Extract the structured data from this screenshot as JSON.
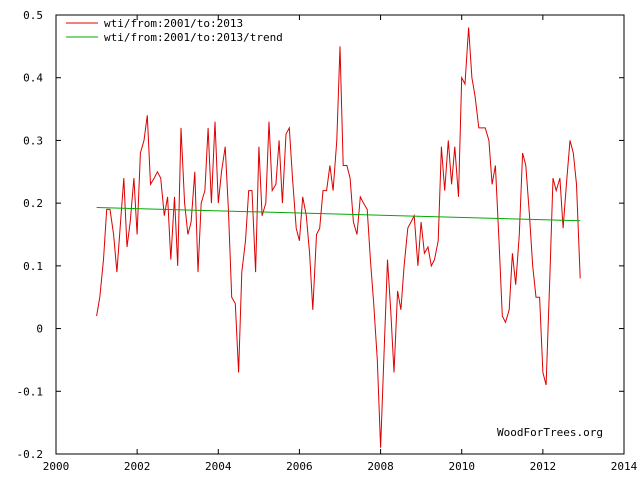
{
  "chart_data": {
    "type": "line",
    "title": "",
    "xlabel": "",
    "ylabel": "",
    "xlim": [
      2000,
      2014
    ],
    "ylim": [
      -0.2,
      0.5
    ],
    "grid": false,
    "legend_position": "top-left",
    "x_ticks": [
      {
        "value": 2000,
        "label": "2000"
      },
      {
        "value": 2002,
        "label": "2002"
      },
      {
        "value": 2004,
        "label": "2004"
      },
      {
        "value": 2006,
        "label": "2006"
      },
      {
        "value": 2008,
        "label": "2008"
      },
      {
        "value": 2010,
        "label": "2010"
      },
      {
        "value": 2012,
        "label": "2012"
      },
      {
        "value": 2014,
        "label": "2014"
      }
    ],
    "y_ticks": [
      {
        "value": -0.2,
        "label": "-0.2"
      },
      {
        "value": -0.1,
        "label": "-0.1"
      },
      {
        "value": 0,
        "label": "0"
      },
      {
        "value": 0.1,
        "label": "0.1"
      },
      {
        "value": 0.2,
        "label": "0.2"
      },
      {
        "value": 0.3,
        "label": "0.3"
      },
      {
        "value": 0.4,
        "label": "0.4"
      },
      {
        "value": 0.5,
        "label": "0.5"
      }
    ],
    "annotation": "WoodForTrees.org",
    "series": [
      {
        "name": "wti/from:2001/to:2013",
        "color": "#dd0000",
        "points": [
          [
            2001.0,
            0.02
          ],
          [
            2001.08,
            0.05
          ],
          [
            2001.17,
            0.11
          ],
          [
            2001.25,
            0.19
          ],
          [
            2001.33,
            0.19
          ],
          [
            2001.42,
            0.15
          ],
          [
            2001.5,
            0.09
          ],
          [
            2001.58,
            0.16
          ],
          [
            2001.67,
            0.24
          ],
          [
            2001.75,
            0.13
          ],
          [
            2001.83,
            0.17
          ],
          [
            2001.92,
            0.24
          ],
          [
            2002.0,
            0.15
          ],
          [
            2002.08,
            0.28
          ],
          [
            2002.17,
            0.3
          ],
          [
            2002.25,
            0.34
          ],
          [
            2002.33,
            0.23
          ],
          [
            2002.42,
            0.24
          ],
          [
            2002.5,
            0.25
          ],
          [
            2002.58,
            0.24
          ],
          [
            2002.67,
            0.18
          ],
          [
            2002.75,
            0.21
          ],
          [
            2002.83,
            0.11
          ],
          [
            2002.92,
            0.21
          ],
          [
            2003.0,
            0.1
          ],
          [
            2003.08,
            0.32
          ],
          [
            2003.17,
            0.2
          ],
          [
            2003.25,
            0.15
          ],
          [
            2003.33,
            0.17
          ],
          [
            2003.42,
            0.25
          ],
          [
            2003.5,
            0.09
          ],
          [
            2003.58,
            0.2
          ],
          [
            2003.67,
            0.22
          ],
          [
            2003.75,
            0.32
          ],
          [
            2003.83,
            0.2
          ],
          [
            2003.92,
            0.33
          ],
          [
            2004.0,
            0.2
          ],
          [
            2004.08,
            0.25
          ],
          [
            2004.17,
            0.29
          ],
          [
            2004.25,
            0.19
          ],
          [
            2004.33,
            0.05
          ],
          [
            2004.42,
            0.04
          ],
          [
            2004.5,
            -0.07
          ],
          [
            2004.58,
            0.09
          ],
          [
            2004.67,
            0.14
          ],
          [
            2004.75,
            0.22
          ],
          [
            2004.83,
            0.22
          ],
          [
            2004.92,
            0.09
          ],
          [
            2005.0,
            0.29
          ],
          [
            2005.08,
            0.18
          ],
          [
            2005.17,
            0.2
          ],
          [
            2005.25,
            0.33
          ],
          [
            2005.33,
            0.22
          ],
          [
            2005.42,
            0.23
          ],
          [
            2005.5,
            0.3
          ],
          [
            2005.58,
            0.2
          ],
          [
            2005.67,
            0.31
          ],
          [
            2005.75,
            0.32
          ],
          [
            2005.83,
            0.24
          ],
          [
            2005.92,
            0.16
          ],
          [
            2006.0,
            0.14
          ],
          [
            2006.08,
            0.21
          ],
          [
            2006.17,
            0.18
          ],
          [
            2006.25,
            0.12
          ],
          [
            2006.33,
            0.03
          ],
          [
            2006.42,
            0.15
          ],
          [
            2006.5,
            0.16
          ],
          [
            2006.58,
            0.22
          ],
          [
            2006.67,
            0.22
          ],
          [
            2006.75,
            0.26
          ],
          [
            2006.83,
            0.22
          ],
          [
            2006.92,
            0.3
          ],
          [
            2007.0,
            0.45
          ],
          [
            2007.08,
            0.26
          ],
          [
            2007.17,
            0.26
          ],
          [
            2007.25,
            0.24
          ],
          [
            2007.33,
            0.17
          ],
          [
            2007.42,
            0.15
          ],
          [
            2007.5,
            0.21
          ],
          [
            2007.58,
            0.2
          ],
          [
            2007.67,
            0.19
          ],
          [
            2007.75,
            0.11
          ],
          [
            2007.83,
            0.04
          ],
          [
            2007.92,
            -0.05
          ],
          [
            2008.0,
            -0.19
          ],
          [
            2008.08,
            -0.05
          ],
          [
            2008.17,
            0.11
          ],
          [
            2008.25,
            0.03
          ],
          [
            2008.33,
            -0.07
          ],
          [
            2008.42,
            0.06
          ],
          [
            2008.5,
            0.03
          ],
          [
            2008.58,
            0.1
          ],
          [
            2008.67,
            0.16
          ],
          [
            2008.75,
            0.17
          ],
          [
            2008.83,
            0.18
          ],
          [
            2008.92,
            0.1
          ],
          [
            2009.0,
            0.17
          ],
          [
            2009.08,
            0.12
          ],
          [
            2009.17,
            0.13
          ],
          [
            2009.25,
            0.1
          ],
          [
            2009.33,
            0.11
          ],
          [
            2009.42,
            0.14
          ],
          [
            2009.5,
            0.29
          ],
          [
            2009.58,
            0.22
          ],
          [
            2009.67,
            0.3
          ],
          [
            2009.75,
            0.23
          ],
          [
            2009.83,
            0.29
          ],
          [
            2009.92,
            0.21
          ],
          [
            2010.0,
            0.4
          ],
          [
            2010.08,
            0.39
          ],
          [
            2010.17,
            0.48
          ],
          [
            2010.25,
            0.4
          ],
          [
            2010.33,
            0.37
          ],
          [
            2010.42,
            0.32
          ],
          [
            2010.5,
            0.32
          ],
          [
            2010.58,
            0.32
          ],
          [
            2010.67,
            0.3
          ],
          [
            2010.75,
            0.23
          ],
          [
            2010.83,
            0.26
          ],
          [
            2010.92,
            0.14
          ],
          [
            2011.0,
            0.02
          ],
          [
            2011.08,
            0.01
          ],
          [
            2011.17,
            0.03
          ],
          [
            2011.25,
            0.12
          ],
          [
            2011.33,
            0.07
          ],
          [
            2011.42,
            0.15
          ],
          [
            2011.5,
            0.28
          ],
          [
            2011.58,
            0.26
          ],
          [
            2011.67,
            0.18
          ],
          [
            2011.75,
            0.1
          ],
          [
            2011.83,
            0.05
          ],
          [
            2011.92,
            0.05
          ],
          [
            2012.0,
            -0.07
          ],
          [
            2012.08,
            -0.09
          ],
          [
            2012.17,
            0.08
          ],
          [
            2012.25,
            0.24
          ],
          [
            2012.33,
            0.22
          ],
          [
            2012.42,
            0.24
          ],
          [
            2012.5,
            0.16
          ],
          [
            2012.58,
            0.23
          ],
          [
            2012.67,
            0.3
          ],
          [
            2012.75,
            0.28
          ],
          [
            2012.83,
            0.23
          ],
          [
            2012.92,
            0.08
          ]
        ]
      },
      {
        "name": "wti/from:2001/to:2013/trend",
        "color": "#00aa00",
        "points": [
          [
            2001.0,
            0.193
          ],
          [
            2012.92,
            0.172
          ]
        ]
      }
    ]
  }
}
